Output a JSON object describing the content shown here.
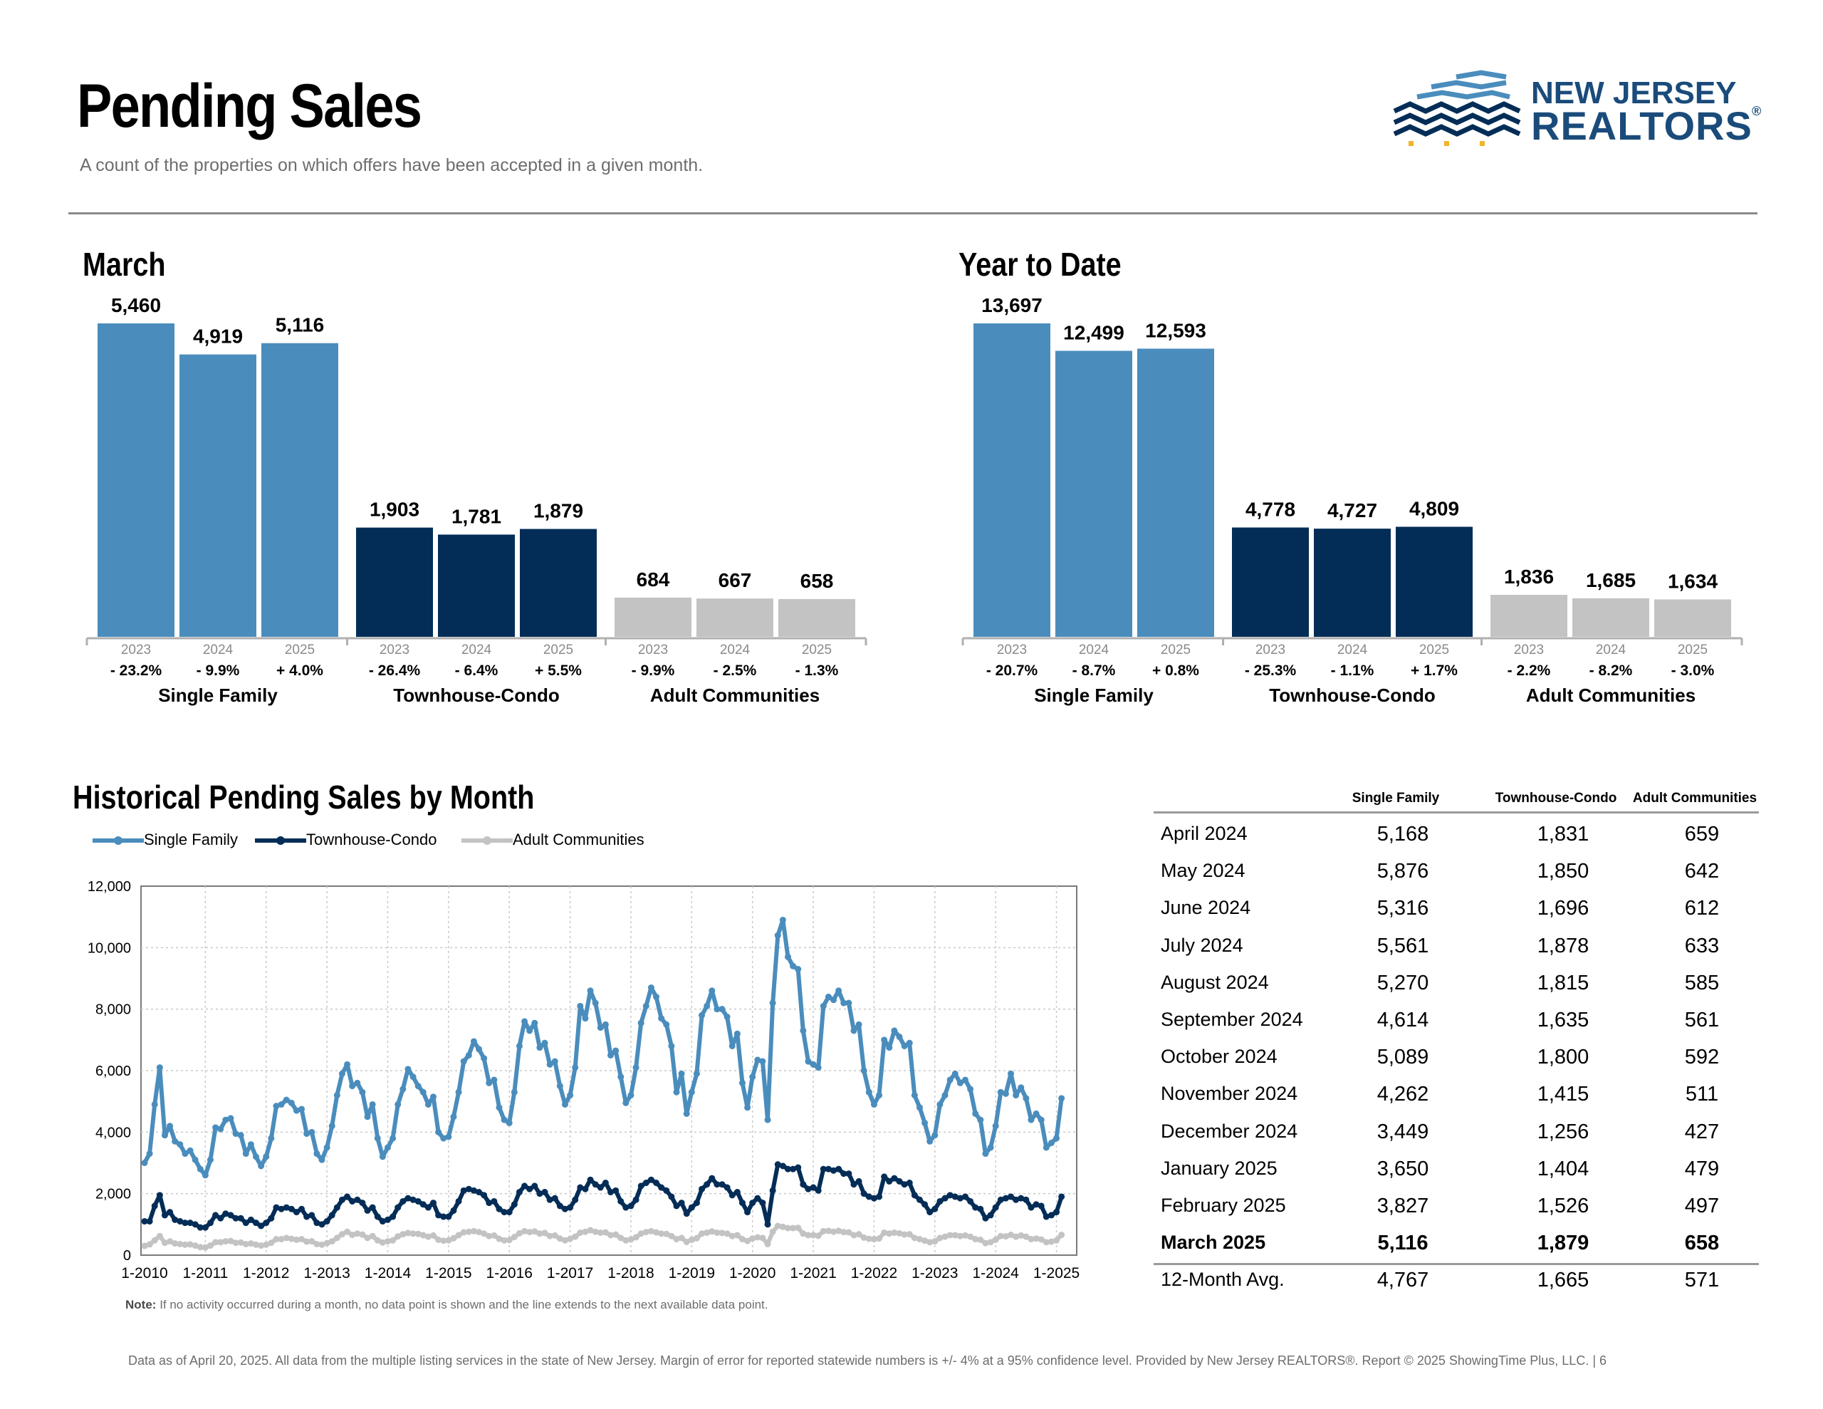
{
  "header": {
    "title": "Pending Sales",
    "subtitle": "A count of the properties on which offers have been accepted in a given month.",
    "logo_line1": "NEW JERSEY",
    "logo_line2": "REALTORS",
    "logo_mark": "®"
  },
  "colors": {
    "single_family": "#4a8dbd",
    "townhouse_condo": "#032d57",
    "adult_communities": "#c3c3c3"
  },
  "sections": {
    "march": "March",
    "ytd": "Year to Date",
    "historical": "Historical Pending Sales by Month"
  },
  "chart_data": [
    {
      "type": "bar",
      "title": "March",
      "groups": [
        "Single Family",
        "Townhouse-Condo",
        "Adult Communities"
      ],
      "years": [
        "2023",
        "2024",
        "2025"
      ],
      "series": [
        {
          "name": "Single Family",
          "values": [
            5460,
            4919,
            5116
          ],
          "labels": [
            "5,460",
            "4,919",
            "5,116"
          ],
          "changes": [
            "- 23.2%",
            "- 9.9%",
            "+ 4.0%"
          ]
        },
        {
          "name": "Townhouse-Condo",
          "values": [
            1903,
            1781,
            1879
          ],
          "labels": [
            "1,903",
            "1,781",
            "1,879"
          ],
          "changes": [
            "- 26.4%",
            "- 6.4%",
            "+ 5.5%"
          ]
        },
        {
          "name": "Adult Communities",
          "values": [
            684,
            667,
            658
          ],
          "labels": [
            "684",
            "667",
            "658"
          ],
          "changes": [
            "- 9.9%",
            "- 2.5%",
            "- 1.3%"
          ]
        }
      ]
    },
    {
      "type": "bar",
      "title": "Year to Date",
      "groups": [
        "Single Family",
        "Townhouse-Condo",
        "Adult Communities"
      ],
      "years": [
        "2023",
        "2024",
        "2025"
      ],
      "series": [
        {
          "name": "Single Family",
          "values": [
            13697,
            12499,
            12593
          ],
          "labels": [
            "13,697",
            "12,499",
            "12,593"
          ],
          "changes": [
            "- 20.7%",
            "- 8.7%",
            "+ 0.8%"
          ]
        },
        {
          "name": "Townhouse-Condo",
          "values": [
            4778,
            4727,
            4809
          ],
          "labels": [
            "4,778",
            "4,727",
            "4,809"
          ],
          "changes": [
            "- 25.3%",
            "- 1.1%",
            "+ 1.7%"
          ]
        },
        {
          "name": "Adult Communities",
          "values": [
            1836,
            1685,
            1634
          ],
          "labels": [
            "1,836",
            "1,685",
            "1,634"
          ],
          "changes": [
            "- 2.2%",
            "- 8.2%",
            "- 3.0%"
          ]
        }
      ]
    },
    {
      "type": "line",
      "title": "Historical Pending Sales by Month",
      "x_start": "1-2010",
      "x_ticks": [
        "1-2010",
        "1-2011",
        "1-2012",
        "1-2013",
        "1-2014",
        "1-2015",
        "1-2016",
        "1-2017",
        "1-2018",
        "1-2019",
        "1-2020",
        "1-2021",
        "1-2022",
        "1-2023",
        "1-2024",
        "1-2025"
      ],
      "y_ticks": [
        "0",
        "2,000",
        "4,000",
        "6,000",
        "8,000",
        "10,000",
        "12,000"
      ],
      "ylim": [
        0,
        12000
      ],
      "grid": true,
      "legend": "top-left",
      "note_label": "Note:",
      "note_text": "If no activity occurred during a month, no data point is shown and the line extends to the next available data point.",
      "series": [
        {
          "name": "Single Family",
          "values": [
            3000,
            3300,
            4900,
            6100,
            3900,
            4200,
            3700,
            3600,
            3300,
            3400,
            3100,
            2800,
            2600,
            3100,
            4150,
            4100,
            4400,
            4450,
            3950,
            3900,
            3300,
            3600,
            3200,
            2900,
            3200,
            3800,
            4850,
            4900,
            5050,
            4950,
            4700,
            4750,
            3950,
            4000,
            3300,
            3100,
            3500,
            4200,
            5200,
            5900,
            6200,
            5500,
            5600,
            5300,
            4500,
            4900,
            3800,
            3200,
            3500,
            3800,
            4900,
            5400,
            6050,
            5800,
            5500,
            5300,
            4900,
            5150,
            4000,
            3800,
            3850,
            4500,
            5300,
            6300,
            6500,
            6950,
            6700,
            6400,
            5600,
            5700,
            4800,
            4400,
            4300,
            5300,
            6800,
            7600,
            7300,
            7550,
            6750,
            6900,
            6200,
            6300,
            5500,
            4900,
            5200,
            6100,
            8100,
            7700,
            8600,
            8200,
            7400,
            7500,
            6500,
            6650,
            5800,
            4950,
            5200,
            6100,
            7550,
            8100,
            8700,
            8400,
            7700,
            7500,
            6800,
            5300,
            5900,
            4600,
            5300,
            5900,
            7800,
            8100,
            8600,
            8000,
            8000,
            7750,
            6800,
            7200,
            5600,
            4800,
            5800,
            6350,
            6300,
            4400,
            8200,
            10400,
            10900,
            9700,
            9400,
            9300,
            7300,
            6300,
            6200,
            6100,
            8100,
            8400,
            8300,
            8600,
            8200,
            8200,
            7300,
            7500,
            6000,
            5300,
            4900,
            5200,
            7000,
            6750,
            7300,
            7100,
            6800,
            6900,
            5200,
            4800,
            4300,
            3700,
            3900,
            4900,
            5200,
            5700,
            5900,
            5600,
            5700,
            5400,
            4600,
            4400,
            3300,
            3500,
            4200,
            5300,
            5250,
            5900,
            5200,
            5450,
            5100,
            4400,
            4600,
            4400,
            3500,
            3650,
            3800,
            5100
          ]
        },
        {
          "name": "Townhouse-Condo",
          "values": [
            1100,
            1100,
            1600,
            1950,
            1300,
            1400,
            1150,
            1100,
            1050,
            1050,
            1000,
            900,
            900,
            1050,
            1300,
            1200,
            1350,
            1300,
            1200,
            1200,
            1050,
            1150,
            1050,
            950,
            1050,
            1200,
            1550,
            1500,
            1550,
            1500,
            1400,
            1500,
            1250,
            1300,
            1050,
            1000,
            1100,
            1300,
            1550,
            1800,
            1900,
            1750,
            1800,
            1700,
            1450,
            1550,
            1250,
            1100,
            1150,
            1250,
            1550,
            1750,
            1850,
            1800,
            1750,
            1650,
            1550,
            1700,
            1300,
            1250,
            1250,
            1450,
            1750,
            2100,
            2150,
            2100,
            2050,
            1950,
            1700,
            1750,
            1500,
            1400,
            1400,
            1650,
            2050,
            2250,
            2150,
            2250,
            2000,
            2050,
            1800,
            1850,
            1600,
            1500,
            1550,
            1800,
            2200,
            2150,
            2450,
            2300,
            2200,
            2350,
            2050,
            2100,
            1750,
            1550,
            1600,
            1800,
            2250,
            2350,
            2450,
            2350,
            2200,
            2100,
            1900,
            1600,
            1700,
            1350,
            1550,
            1700,
            2150,
            2300,
            2500,
            2300,
            2300,
            2200,
            1950,
            2050,
            1700,
            1400,
            1700,
            1850,
            1700,
            1000,
            2100,
            2950,
            2900,
            2800,
            2800,
            2850,
            2300,
            2150,
            2200,
            2100,
            2800,
            2800,
            2750,
            2800,
            2650,
            2650,
            2300,
            2400,
            2000,
            1900,
            1850,
            1900,
            2550,
            2400,
            2500,
            2400,
            2300,
            2350,
            1950,
            1800,
            1650,
            1400,
            1500,
            1750,
            1850,
            1950,
            1900,
            1850,
            1900,
            1750,
            1550,
            1500,
            1200,
            1300,
            1550,
            1800,
            1850,
            1900,
            1800,
            1850,
            1800,
            1550,
            1650,
            1600,
            1250,
            1300,
            1400,
            1900
          ]
        },
        {
          "name": "Adult Communities",
          "values": [
            300,
            350,
            480,
            620,
            400,
            450,
            380,
            360,
            340,
            350,
            310,
            260,
            250,
            310,
            420,
            420,
            450,
            460,
            400,
            410,
            360,
            380,
            340,
            310,
            340,
            400,
            520,
            520,
            560,
            530,
            500,
            520,
            440,
            450,
            360,
            340,
            390,
            450,
            560,
            680,
            760,
            660,
            700,
            670,
            560,
            620,
            480,
            410,
            450,
            480,
            610,
            680,
            720,
            700,
            690,
            650,
            600,
            640,
            500,
            470,
            480,
            550,
            650,
            740,
            760,
            780,
            750,
            700,
            620,
            640,
            530,
            480,
            490,
            590,
            710,
            780,
            750,
            770,
            700,
            720,
            620,
            640,
            540,
            480,
            530,
            600,
            730,
            760,
            810,
            760,
            730,
            740,
            650,
            670,
            560,
            480,
            510,
            580,
            700,
            750,
            780,
            740,
            700,
            690,
            620,
            520,
            560,
            430,
            500,
            550,
            700,
            730,
            770,
            730,
            720,
            700,
            620,
            650,
            520,
            460,
            540,
            580,
            560,
            360,
            760,
            950,
            920,
            880,
            880,
            890,
            700,
            650,
            650,
            630,
            780,
            790,
            760,
            790,
            750,
            740,
            650,
            680,
            570,
            530,
            520,
            540,
            730,
            700,
            730,
            710,
            670,
            680,
            560,
            520,
            470,
            420,
            450,
            560,
            600,
            650,
            650,
            620,
            640,
            600,
            520,
            500,
            390,
            420,
            500,
            620,
            610,
            660,
            600,
            640,
            600,
            520,
            540,
            510,
            420,
            440,
            480,
            660
          ]
        }
      ]
    }
  ],
  "table": {
    "headers": [
      "",
      "Single Family",
      "Townhouse-Condo",
      "Adult Communities"
    ],
    "rows": [
      [
        "April 2024",
        "5,168",
        "1,831",
        "659"
      ],
      [
        "May 2024",
        "5,876",
        "1,850",
        "642"
      ],
      [
        "June 2024",
        "5,316",
        "1,696",
        "612"
      ],
      [
        "July 2024",
        "5,561",
        "1,878",
        "633"
      ],
      [
        "August 2024",
        "5,270",
        "1,815",
        "585"
      ],
      [
        "September 2024",
        "4,614",
        "1,635",
        "561"
      ],
      [
        "October 2024",
        "5,089",
        "1,800",
        "592"
      ],
      [
        "November 2024",
        "4,262",
        "1,415",
        "511"
      ],
      [
        "December 2024",
        "3,449",
        "1,256",
        "427"
      ],
      [
        "January 2025",
        "3,650",
        "1,404",
        "479"
      ],
      [
        "February 2025",
        "3,827",
        "1,526",
        "497"
      ],
      [
        "March 2025",
        "5,116",
        "1,879",
        "658"
      ],
      [
        "12-Month Avg.",
        "4,767",
        "1,665",
        "571"
      ]
    ],
    "bold_row": 11
  },
  "footer": {
    "text": "Data as of April 20, 2025. All data from the multiple listing services in the state of New Jersey. Margin of error for reported statewide numbers is +/- 4% at a 95% confidence level. Provided by New Jersey REALTORS®. Report © 2025 ShowingTime Plus, LLC. |  6"
  }
}
